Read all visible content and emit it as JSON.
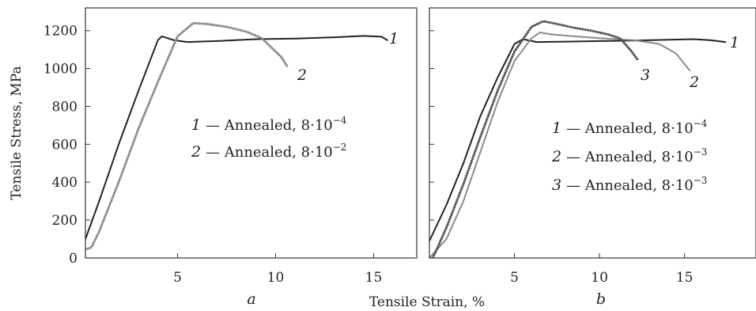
{
  "figure": {
    "ylabel": "Tensile Stress, MPa",
    "xlabel": "Tensile Strain, %"
  },
  "chart_data": [
    {
      "type": "line",
      "panel_label": "a",
      "xlim": [
        0.3,
        17.2
      ],
      "ylim": [
        0,
        1320
      ],
      "x_ticks": [
        5,
        10,
        15
      ],
      "y_ticks": [
        0,
        200,
        400,
        600,
        800,
        1000,
        1200
      ],
      "legend_position": "center-right",
      "series": [
        {
          "label": "1",
          "legend_text": "— Annealed, 8·10",
          "legend_exp": "−4",
          "color": "#222222",
          "style": "solid",
          "points": [
            [
              0.3,
              100
            ],
            [
              1.0,
              300
            ],
            [
              2.0,
              600
            ],
            [
              3.0,
              880
            ],
            [
              4.0,
              1150
            ],
            [
              4.2,
              1170
            ],
            [
              4.8,
              1150
            ],
            [
              5.5,
              1140
            ],
            [
              7,
              1145
            ],
            [
              9,
              1155
            ],
            [
              11,
              1158
            ],
            [
              13,
              1165
            ],
            [
              14.5,
              1172
            ],
            [
              15.4,
              1168
            ],
            [
              15.7,
              1150
            ]
          ]
        },
        {
          "label": "2",
          "legend_text": "— Annealed, 8·10",
          "legend_exp": "−2",
          "color": "#8a8a8a",
          "style": "dotted",
          "points": [
            [
              0.3,
              45
            ],
            [
              0.6,
              55
            ],
            [
              1.0,
              140
            ],
            [
              2.0,
              400
            ],
            [
              3.0,
              680
            ],
            [
              4.0,
              930
            ],
            [
              5.0,
              1170
            ],
            [
              5.8,
              1240
            ],
            [
              6.5,
              1235
            ],
            [
              7.5,
              1220
            ],
            [
              8.5,
              1195
            ],
            [
              9.3,
              1160
            ],
            [
              9.8,
              1110
            ],
            [
              10.3,
              1060
            ],
            [
              10.6,
              1010
            ]
          ]
        }
      ]
    },
    {
      "type": "line",
      "panel_label": "b",
      "xlim": [
        0,
        19.2
      ],
      "ylim": [
        0,
        1320
      ],
      "x_ticks": [
        5,
        10,
        15
      ],
      "y_ticks": [
        0,
        200,
        400,
        600,
        800,
        1000,
        1200
      ],
      "legend_position": "center-right",
      "series": [
        {
          "label": "1",
          "legend_text": "— Annealed, 8·10",
          "legend_exp": "−4",
          "color": "#222222",
          "style": "solid",
          "points": [
            [
              0,
              90
            ],
            [
              1,
              280
            ],
            [
              2,
              500
            ],
            [
              3,
              750
            ],
            [
              4,
              950
            ],
            [
              5,
              1130
            ],
            [
              5.5,
              1155
            ],
            [
              6.3,
              1140
            ],
            [
              8,
              1142
            ],
            [
              10,
              1145
            ],
            [
              12,
              1148
            ],
            [
              14,
              1152
            ],
            [
              15.5,
              1155
            ],
            [
              16.5,
              1150
            ],
            [
              17.4,
              1140
            ]
          ]
        },
        {
          "label": "2",
          "legend_text": "— Annealed, 8·10",
          "legend_exp": "−3",
          "color": "#8a8a8a",
          "style": "solid",
          "points": [
            [
              0,
              0
            ],
            [
              1,
              100
            ],
            [
              2,
              300
            ],
            [
              3,
              560
            ],
            [
              4,
              820
            ],
            [
              5,
              1040
            ],
            [
              6,
              1160
            ],
            [
              6.5,
              1190
            ],
            [
              7.2,
              1180
            ],
            [
              8.5,
              1170
            ],
            [
              10,
              1160
            ],
            [
              12,
              1150
            ],
            [
              13.5,
              1130
            ],
            [
              14.5,
              1080
            ],
            [
              15.3,
              990
            ]
          ]
        },
        {
          "label": "3",
          "legend_text": "— Annealed, 8·10",
          "legend_exp": "−3",
          "color": "#555555",
          "style": "dotted",
          "points": [
            [
              0.2,
              0
            ],
            [
              1,
              160
            ],
            [
              2,
              390
            ],
            [
              3,
              640
            ],
            [
              4,
              880
            ],
            [
              5,
              1090
            ],
            [
              6,
              1220
            ],
            [
              6.7,
              1250
            ],
            [
              7.5,
              1235
            ],
            [
              8.5,
              1215
            ],
            [
              9.5,
              1200
            ],
            [
              10.5,
              1180
            ],
            [
              11.2,
              1160
            ],
            [
              11.8,
              1100
            ],
            [
              12.3,
              1040
            ]
          ]
        }
      ]
    }
  ]
}
